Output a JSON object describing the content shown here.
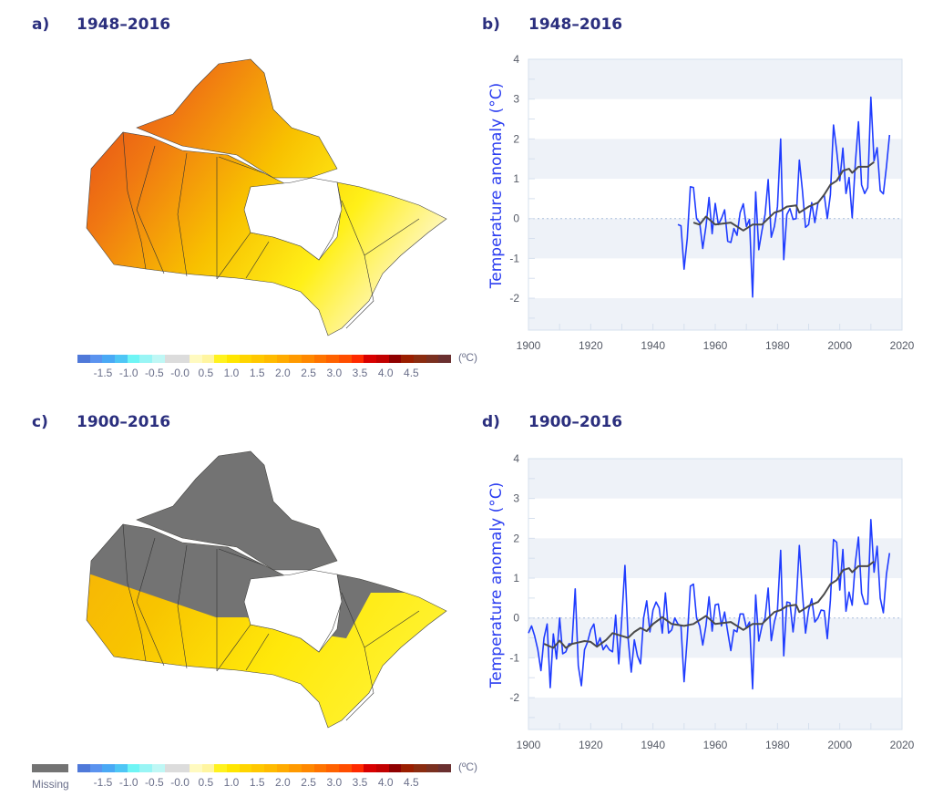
{
  "panels": {
    "a": {
      "label": "a)",
      "period": "1948–2016"
    },
    "b": {
      "label": "b)",
      "period": "1948–2016"
    },
    "c": {
      "label": "c)",
      "period": "1900–2016"
    },
    "d": {
      "label": "d)",
      "period": "1900–2016"
    }
  },
  "colorbar": {
    "ticks": [
      "-1.5",
      "-1.0",
      "-0.5",
      "-0.0",
      "0.5",
      "1.0",
      "1.5",
      "2.0",
      "2.5",
      "3.0",
      "3.5",
      "4.0",
      "4.5"
    ],
    "unit": "(ºC)",
    "colors": [
      "#4f79d9",
      "#5b93ef",
      "#4aa9f5",
      "#4ec6f5",
      "#6ff5f5",
      "#99f5f5",
      "#bff7f5",
      "#dcdcdc",
      "#dcdcdc",
      "#fffac0",
      "#fff5a0",
      "#fff21e",
      "#ffe600",
      "#ffd500",
      "#ffc800",
      "#ffbb00",
      "#ffab00",
      "#ff9a00",
      "#ff8800",
      "#ff7400",
      "#ff6200",
      "#ff4e00",
      "#ff2a00",
      "#d80000",
      "#c20000",
      "#8f0000",
      "#9a1e00",
      "#8a2c10",
      "#7a3020",
      "#6a3030"
    ],
    "missing_label": "Missing",
    "missing_color": "#737373"
  },
  "chart_data": [
    {
      "panel": "b",
      "type": "line",
      "ylabel": "Temperature anomaly (°C)",
      "xlim": [
        1900,
        2020
      ],
      "ylim": [
        -2.8,
        4
      ],
      "xticks": [
        1900,
        1920,
        1940,
        1960,
        1980,
        2000,
        2020
      ],
      "yticks": [
        -2,
        -1,
        0,
        1,
        2,
        3,
        4
      ],
      "grid": "alternating horizontal bands",
      "reference_line": 0,
      "series": [
        {
          "color": "#1f3cff",
          "x": [
            1948,
            1949,
            1950,
            1951,
            1952,
            1953,
            1954,
            1955,
            1956,
            1957,
            1958,
            1959,
            1960,
            1961,
            1962,
            1963,
            1964,
            1965,
            1966,
            1967,
            1968,
            1969,
            1970,
            1971,
            1972,
            1973,
            1974,
            1975,
            1976,
            1977,
            1978,
            1979,
            1980,
            1981,
            1982,
            1983,
            1984,
            1985,
            1986,
            1987,
            1988,
            1989,
            1990,
            1991,
            1992,
            1993,
            1994,
            1995,
            1996,
            1997,
            1998,
            1999,
            2000,
            2001,
            2002,
            2003,
            2004,
            2005,
            2006,
            2007,
            2008,
            2009,
            2010,
            2011,
            2012,
            2013,
            2014,
            2015,
            2016
          ],
          "values": [
            -0.15,
            -0.18,
            -1.27,
            -0.5,
            0.8,
            0.78,
            0,
            -0.1,
            -0.75,
            -0.2,
            0.53,
            -0.38,
            0.38,
            -0.15,
            0.0,
            0.22,
            -0.57,
            -0.6,
            -0.25,
            -0.42,
            0.15,
            0.37,
            -0.2,
            -0.02,
            -1.97,
            0.67,
            -0.78,
            -0.3,
            0.1,
            0.98,
            -0.47,
            -0.2,
            0.3,
            2.0,
            -1.03,
            0.1,
            0.25,
            -0.02,
            0.0,
            1.47,
            0.7,
            -0.22,
            -0.15,
            0.4,
            -0.1,
            0.4,
            0.5,
            0.6,
            0.0,
            0.6,
            2.35,
            1.7,
            0.95,
            1.77,
            0.63,
            1.03,
            0.02,
            1.4,
            2.43,
            0.85,
            0.63,
            0.78,
            3.05,
            1.45,
            1.78,
            0.7,
            0.62,
            1.3,
            2.1
          ]
        },
        {
          "color": "#4a4a4a",
          "x": [
            1953,
            1955,
            1957,
            1960,
            1965,
            1969,
            1972,
            1975,
            1977,
            1979,
            1981,
            1983,
            1986,
            1987,
            1990,
            1993,
            1995,
            1997,
            1999,
            2001,
            2003,
            2004,
            2006,
            2009,
            2011
          ],
          "values": [
            -0.1,
            -0.15,
            0.05,
            -0.15,
            -0.1,
            -0.3,
            -0.15,
            -0.15,
            0.0,
            0.15,
            0.2,
            0.3,
            0.33,
            0.15,
            0.3,
            0.4,
            0.6,
            0.85,
            0.95,
            1.2,
            1.25,
            1.15,
            1.3,
            1.3,
            1.42
          ]
        }
      ]
    },
    {
      "panel": "d",
      "type": "line",
      "ylabel": "Temperature anomaly (°C)",
      "xlim": [
        1900,
        2020
      ],
      "ylim": [
        -2.8,
        4
      ],
      "xticks": [
        1900,
        1920,
        1940,
        1960,
        1980,
        2000,
        2020
      ],
      "yticks": [
        -2,
        -1,
        0,
        1,
        2,
        3,
        4
      ],
      "grid": "alternating horizontal bands",
      "reference_line": 0,
      "series": [
        {
          "color": "#1f3cff",
          "x": [
            1900,
            1901,
            1902,
            1903,
            1904,
            1905,
            1906,
            1907,
            1908,
            1909,
            1910,
            1911,
            1912,
            1913,
            1914,
            1915,
            1916,
            1917,
            1918,
            1919,
            1920,
            1921,
            1922,
            1923,
            1924,
            1925,
            1926,
            1927,
            1928,
            1929,
            1930,
            1931,
            1932,
            1933,
            1934,
            1935,
            1936,
            1937,
            1938,
            1939,
            1940,
            1941,
            1942,
            1943,
            1944,
            1945,
            1946,
            1947,
            1948,
            1949,
            1950,
            1951,
            1952,
            1953,
            1954,
            1955,
            1956,
            1957,
            1958,
            1959,
            1960,
            1961,
            1962,
            1963,
            1964,
            1965,
            1966,
            1967,
            1968,
            1969,
            1970,
            1971,
            1972,
            1973,
            1974,
            1975,
            1976,
            1977,
            1978,
            1979,
            1980,
            1981,
            1982,
            1983,
            1984,
            1985,
            1986,
            1987,
            1988,
            1989,
            1990,
            1991,
            1992,
            1993,
            1994,
            1995,
            1996,
            1997,
            1998,
            1999,
            2000,
            2001,
            2002,
            2003,
            2004,
            2005,
            2006,
            2007,
            2008,
            2009,
            2010,
            2011,
            2012,
            2013,
            2014,
            2015,
            2016
          ],
          "values": [
            -0.38,
            -0.2,
            -0.45,
            -0.8,
            -1.32,
            -0.5,
            -0.15,
            -1.75,
            -0.4,
            -1.03,
            0.0,
            -0.9,
            -0.85,
            -0.65,
            -0.65,
            0.73,
            -1.2,
            -1.7,
            -0.8,
            -0.6,
            -0.3,
            -0.15,
            -0.7,
            -0.5,
            -0.8,
            -0.68,
            -0.8,
            -0.85,
            0.07,
            -1.15,
            0.0,
            1.32,
            -0.5,
            -1.36,
            -0.55,
            -0.95,
            -1.15,
            0.0,
            0.43,
            -0.35,
            0.2,
            0.4,
            0.25,
            -0.38,
            0.63,
            -0.38,
            -0.3,
            0.0,
            -0.15,
            -0.2,
            -1.6,
            -0.5,
            0.8,
            0.85,
            0.0,
            -0.2,
            -0.68,
            -0.2,
            0.53,
            -0.33,
            0.33,
            0.35,
            -0.2,
            0.15,
            -0.35,
            -0.82,
            -0.3,
            -0.35,
            0.1,
            0.1,
            -0.25,
            -0.1,
            -1.78,
            0.58,
            -0.58,
            -0.2,
            0.0,
            0.75,
            -0.57,
            -0.1,
            0.2,
            1.7,
            -0.95,
            0.4,
            0.38,
            -0.35,
            0.35,
            1.82,
            0.63,
            -0.38,
            0.2,
            0.48,
            -0.1,
            0.0,
            0.2,
            0.18,
            -0.52,
            0.45,
            1.97,
            1.9,
            0.7,
            1.72,
            0.17,
            0.65,
            0.32,
            1.4,
            2.03,
            0.62,
            0.35,
            0.35,
            2.47,
            1.15,
            1.8,
            0.5,
            0.13,
            1.1,
            1.63
          ]
        },
        {
          "color": "#4a4a4a",
          "x": [
            1905,
            1908,
            1910,
            1912,
            1914,
            1918,
            1920,
            1922,
            1925,
            1927,
            1930,
            1932,
            1934,
            1936,
            1938,
            1940,
            1943,
            1946,
            1950,
            1953,
            1957,
            1960,
            1965,
            1969,
            1972,
            1975,
            1977,
            1979,
            1981,
            1983,
            1986,
            1987,
            1990,
            1993,
            1995,
            1997,
            1999,
            2001,
            2003,
            2004,
            2006,
            2009,
            2011
          ],
          "values": [
            -0.65,
            -0.75,
            -0.57,
            -0.75,
            -0.65,
            -0.58,
            -0.6,
            -0.72,
            -0.55,
            -0.38,
            -0.45,
            -0.5,
            -0.35,
            -0.25,
            -0.33,
            -0.15,
            0.02,
            -0.15,
            -0.2,
            -0.15,
            0.05,
            -0.15,
            -0.1,
            -0.3,
            -0.15,
            -0.15,
            0.0,
            0.15,
            0.2,
            0.3,
            0.33,
            0.15,
            0.3,
            0.4,
            0.6,
            0.85,
            0.95,
            1.2,
            1.25,
            1.15,
            1.3,
            1.3,
            1.42
          ]
        }
      ]
    }
  ]
}
